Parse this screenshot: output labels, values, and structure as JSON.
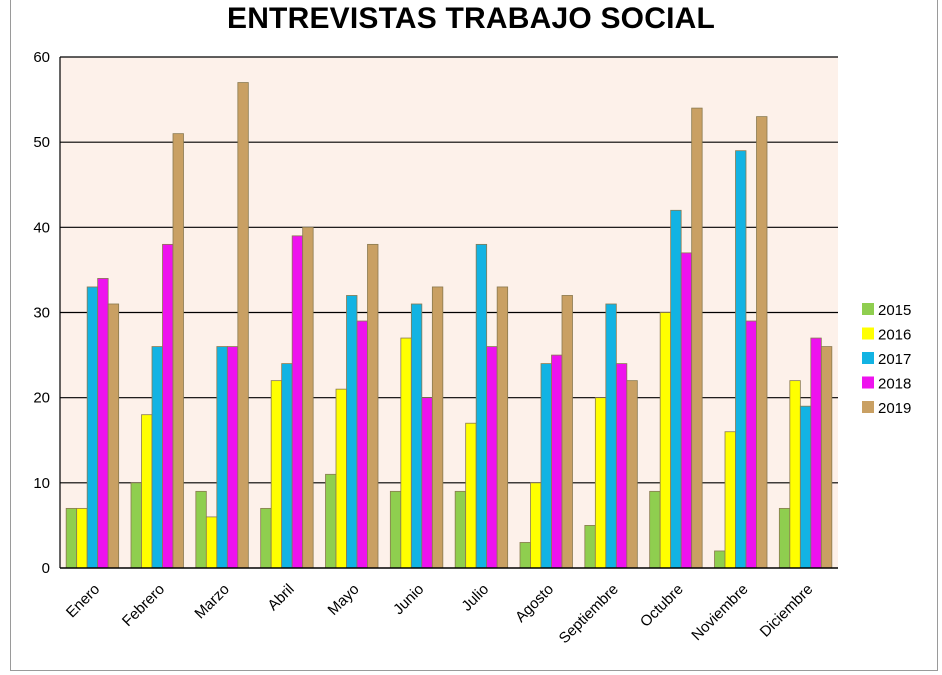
{
  "chart_data": {
    "type": "bar",
    "title": "ENTREVISTAS TRABAJO SOCIAL",
    "xlabel": "",
    "ylabel": "",
    "ylim": [
      0,
      60
    ],
    "yticks": [
      0,
      10,
      20,
      30,
      40,
      50,
      60
    ],
    "grid": true,
    "legend_position": "right",
    "plot_background": "#fdf1ea",
    "categories": [
      "Enero",
      "Febrero",
      "Marzo",
      "Abril",
      "Mayo",
      "Junio",
      "Julio",
      "Agosto",
      "Septiembre",
      "Octubre",
      "Noviembre",
      "Diciembre"
    ],
    "series": [
      {
        "name": "2015",
        "color": "#8fce4f",
        "values": [
          7,
          10,
          9,
          7,
          11,
          9,
          9,
          3,
          5,
          9,
          2,
          7
        ]
      },
      {
        "name": "2016",
        "color": "#ffff00",
        "values": [
          7,
          18,
          6,
          22,
          21,
          27,
          17,
          10,
          20,
          30,
          16,
          22
        ]
      },
      {
        "name": "2017",
        "color": "#12b3e3",
        "values": [
          33,
          26,
          26,
          24,
          32,
          31,
          38,
          24,
          31,
          42,
          49,
          19
        ]
      },
      {
        "name": "2018",
        "color": "#ee12ee",
        "values": [
          34,
          38,
          26,
          39,
          29,
          20,
          26,
          25,
          24,
          37,
          29,
          27
        ]
      },
      {
        "name": "2019",
        "color": "#c9a063",
        "values": [
          31,
          51,
          57,
          40,
          38,
          33,
          33,
          32,
          22,
          54,
          53,
          26
        ]
      }
    ]
  }
}
